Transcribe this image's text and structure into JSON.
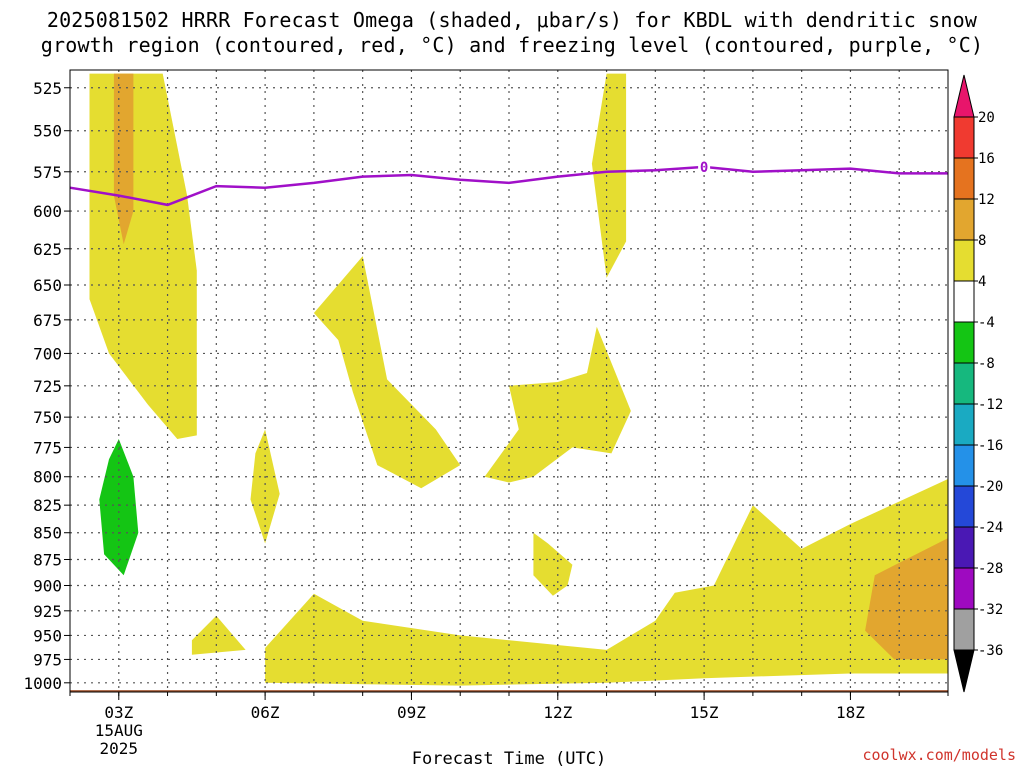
{
  "title_line1": "2025081502 HRRR Forecast Omega (shaded, μbar/s) for KBDL with dendritic snow",
  "title_line2": "growth region (contoured, red, °C) and freezing level (contoured, purple, °C)",
  "credit": "coolwx.com/models",
  "chart_data": {
    "type": "heatmap",
    "xlabel": "Forecast Time (UTC)",
    "ylabel": "",
    "x_ticks": [
      {
        "hour": 3,
        "label": "03Z",
        "sub": [
          "15AUG",
          "2025"
        ]
      },
      {
        "hour": 6,
        "label": "06Z"
      },
      {
        "hour": 9,
        "label": "09Z"
      },
      {
        "hour": 12,
        "label": "12Z"
      },
      {
        "hour": 15,
        "label": "15Z"
      },
      {
        "hour": 18,
        "label": "18Z"
      }
    ],
    "xlim": [
      2,
      20
    ],
    "y_ticks": [
      525,
      550,
      575,
      600,
      625,
      650,
      675,
      700,
      725,
      750,
      775,
      800,
      825,
      850,
      875,
      900,
      925,
      950,
      975,
      1000
    ],
    "ylim_hPa": [
      515,
      1010
    ],
    "y_scale": "log",
    "grid": true,
    "colorbar": {
      "ticks": [
        "20",
        "16",
        "12",
        "8",
        "4",
        "-4",
        "-8",
        "-12",
        "-16",
        "-20",
        "-24",
        "-28",
        "-32",
        "-36"
      ],
      "colors": [
        "#e8156b",
        "#f03a30",
        "#e5731f",
        "#e2a62f",
        "#e5dd30",
        "#ffffff",
        "#14c514",
        "#16b87e",
        "#1aaac2",
        "#2491e8",
        "#2448d8",
        "#4a18b4",
        "#9e0ac0",
        "#a0a0a0",
        "#000000"
      ]
    },
    "shaded_regions": [
      {
        "color": "#e5dd30",
        "category": "4 to 8",
        "points": [
          [
            2.4,
            517
          ],
          [
            3.9,
            517
          ],
          [
            4.4,
            590
          ],
          [
            4.6,
            640
          ],
          [
            4.6,
            765
          ],
          [
            4.2,
            768
          ],
          [
            3.6,
            740
          ],
          [
            2.8,
            700
          ],
          [
            2.4,
            660
          ],
          [
            2.4,
            600
          ]
        ]
      },
      {
        "color": "#e2a62f",
        "category": "8 to 12",
        "points": [
          [
            2.9,
            517
          ],
          [
            3.3,
            517
          ],
          [
            3.3,
            600
          ],
          [
            3.1,
            622
          ],
          [
            2.9,
            590
          ]
        ]
      },
      {
        "color": "#14c514",
        "category": "-4 to -8",
        "points": [
          [
            3.0,
            768
          ],
          [
            3.3,
            800
          ],
          [
            3.4,
            850
          ],
          [
            3.1,
            890
          ],
          [
            2.7,
            870
          ],
          [
            2.6,
            820
          ],
          [
            2.8,
            785
          ]
        ]
      },
      {
        "color": "#e5dd30",
        "category": "4 to 8",
        "points": [
          [
            6.0,
            760
          ],
          [
            6.3,
            815
          ],
          [
            6.0,
            860
          ],
          [
            5.7,
            820
          ],
          [
            5.8,
            780
          ]
        ]
      },
      {
        "color": "#e5dd30",
        "category": "4 to 8",
        "points": [
          [
            7.0,
            670
          ],
          [
            8.0,
            630
          ],
          [
            8.5,
            720
          ],
          [
            9.5,
            760
          ],
          [
            10.0,
            790
          ],
          [
            9.2,
            810
          ],
          [
            8.3,
            790
          ],
          [
            7.8,
            730
          ],
          [
            7.5,
            690
          ]
        ]
      },
      {
        "color": "#e5dd30",
        "category": "4 to 8",
        "points": [
          [
            13.0,
            517
          ],
          [
            13.4,
            517
          ],
          [
            13.4,
            620
          ],
          [
            13.0,
            645
          ],
          [
            12.7,
            570
          ]
        ]
      },
      {
        "color": "#e5dd30",
        "category": "4 to 8",
        "points": [
          [
            12.8,
            680
          ],
          [
            13.5,
            745
          ],
          [
            13.1,
            780
          ],
          [
            12.3,
            775
          ],
          [
            11.5,
            800
          ],
          [
            11.0,
            805
          ],
          [
            10.5,
            800
          ],
          [
            11.2,
            760
          ],
          [
            11.0,
            725
          ],
          [
            12.0,
            722
          ],
          [
            12.6,
            715
          ]
        ]
      },
      {
        "color": "#e5dd30",
        "category": "4 to 8",
        "points": [
          [
            11.5,
            850
          ],
          [
            11.8,
            860
          ],
          [
            12.3,
            880
          ],
          [
            12.2,
            900
          ],
          [
            11.9,
            910
          ],
          [
            11.5,
            890
          ]
        ]
      },
      {
        "color": "#e5dd30",
        "category": "4 to 8",
        "points": [
          [
            5.0,
            930
          ],
          [
            5.6,
            965
          ],
          [
            4.5,
            970
          ],
          [
            4.5,
            955
          ]
        ]
      },
      {
        "color": "#e5dd30",
        "category": "4 to 8",
        "points": [
          [
            6.0,
            963
          ],
          [
            7.0,
            908
          ],
          [
            8.0,
            935
          ],
          [
            10.0,
            950
          ],
          [
            13.0,
            965
          ],
          [
            14.0,
            935
          ],
          [
            14.4,
            907
          ],
          [
            15.2,
            900
          ],
          [
            16.0,
            825
          ],
          [
            17.0,
            865
          ],
          [
            18.0,
            842
          ],
          [
            20.0,
            802
          ],
          [
            20.0,
            990
          ],
          [
            18.0,
            990
          ],
          [
            15.0,
            995
          ],
          [
            13.0,
            1000
          ],
          [
            10.0,
            1003
          ],
          [
            6.0,
            1000
          ]
        ]
      },
      {
        "color": "#e2a62f",
        "category": "8 to 12",
        "points": [
          [
            20.0,
            855
          ],
          [
            18.5,
            890
          ],
          [
            18.3,
            945
          ],
          [
            18.9,
            975
          ],
          [
            20.0,
            975
          ]
        ]
      }
    ],
    "freezing_level_contour": {
      "value": 0,
      "label": "0",
      "points": [
        [
          2,
          585
        ],
        [
          3,
          590
        ],
        [
          4,
          596
        ],
        [
          5,
          584
        ],
        [
          6,
          585
        ],
        [
          7,
          582
        ],
        [
          8,
          578
        ],
        [
          9,
          577
        ],
        [
          10,
          580
        ],
        [
          11,
          582
        ],
        [
          12,
          578
        ],
        [
          13,
          575
        ],
        [
          14,
          574
        ],
        [
          15,
          572
        ],
        [
          16,
          575
        ],
        [
          17,
          574
        ],
        [
          18,
          573
        ],
        [
          19,
          576
        ],
        [
          20,
          576
        ]
      ]
    },
    "terrain_hPa": 1008
  }
}
